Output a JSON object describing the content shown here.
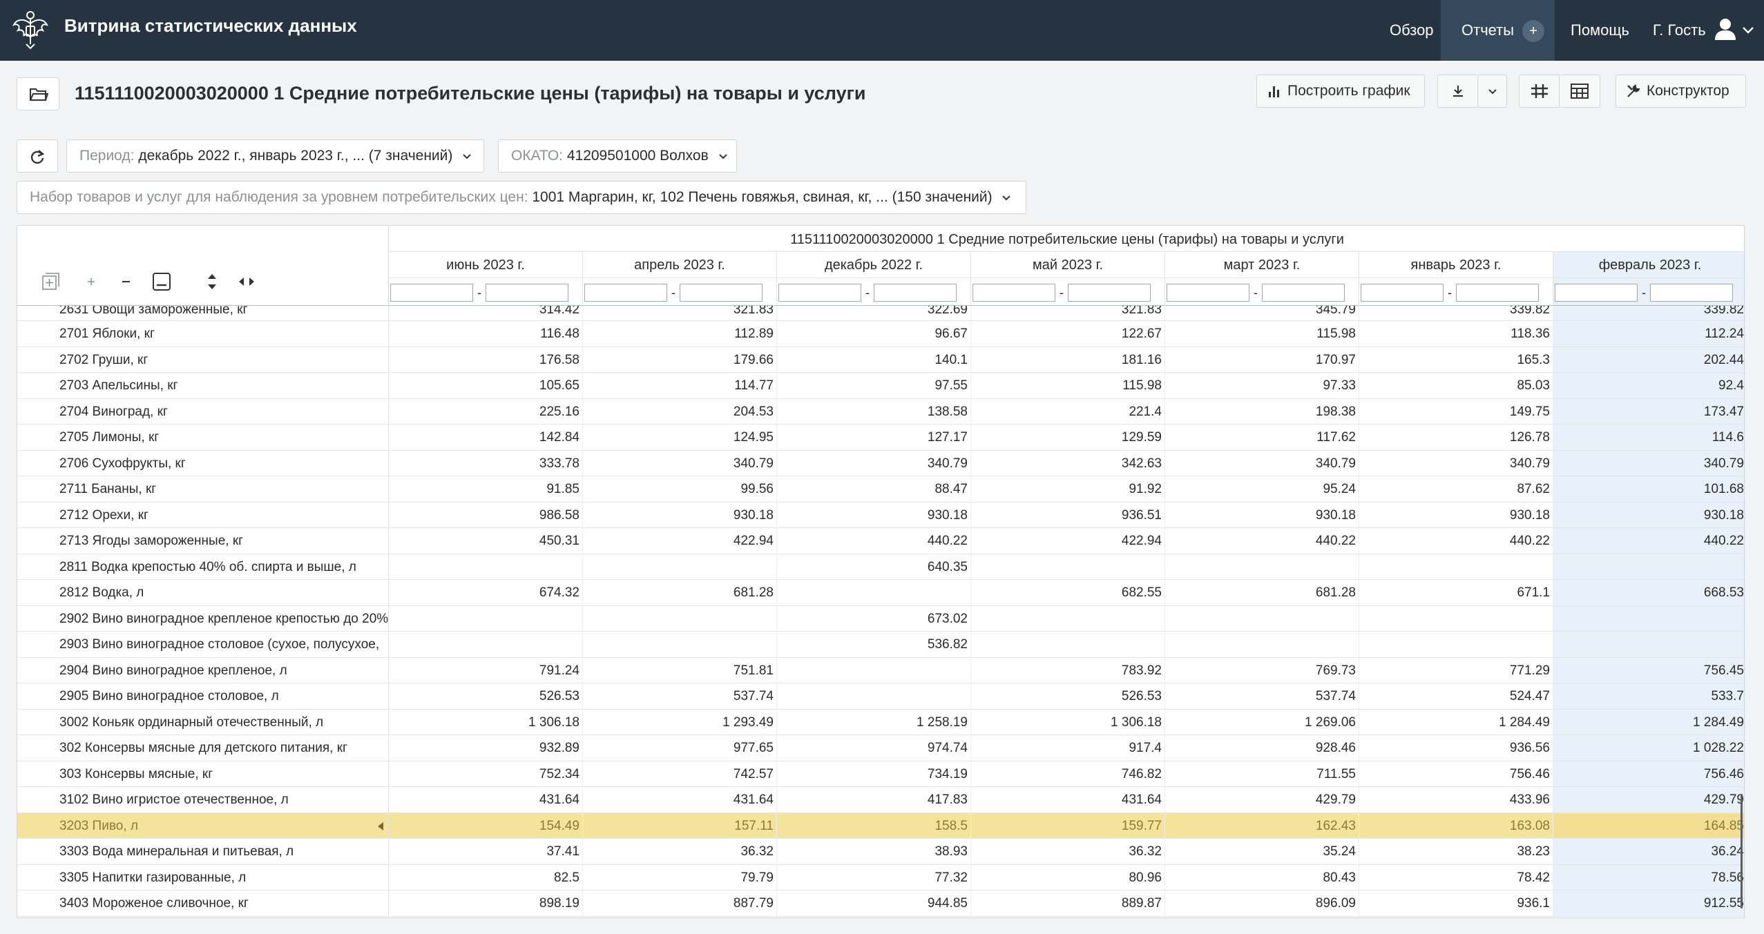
{
  "header": {
    "app_title": "Витрина статистических данных",
    "nav": {
      "overview": "Обзор",
      "reports": "Отчеты",
      "reports_badge": "+",
      "help": "Помощь",
      "user": "Г. Гость"
    }
  },
  "toolbar": {
    "page_title": "1151110020003020000 1 Средние потребительские цены (тарифы) на товары и услуги",
    "build_chart": "Построить график",
    "constructor": "Конструктор"
  },
  "filters": {
    "period_label": "Период:",
    "period_value": "декабрь 2022 г., январь 2023 г., ... (7 значений)",
    "okato_label": "ОКАТО:",
    "okato_value": "41209501000 Волхов",
    "goods_label": "Набор товаров и услуг для наблюдения за уровнем потребительских цен:",
    "goods_value": "1001 Маргарин, кг, 102 Печень говяжья, свиная, кг, ... (150 значений)"
  },
  "table": {
    "title": "1151110020003020000 1 Средние потребительские цены (тарифы) на товары и услуги",
    "filter_dash": "-",
    "columns": [
      "июнь 2023 г.",
      "апрель 2023 г.",
      "декабрь 2022 г.",
      "май 2023 г.",
      "март 2023 г.",
      "январь 2023 г.",
      "февраль 2023 г."
    ],
    "rows": [
      {
        "name": "2631 Овощи замороженные, кг",
        "v": [
          "314.42",
          "321.83",
          "322.69",
          "321.83",
          "345.79",
          "339.82",
          "339.82"
        ]
      },
      {
        "name": "2701 Яблоки, кг",
        "v": [
          "116.48",
          "112.89",
          "96.67",
          "122.67",
          "115.98",
          "118.36",
          "112.24"
        ]
      },
      {
        "name": "2702 Груши, кг",
        "v": [
          "176.58",
          "179.66",
          "140.1",
          "181.16",
          "170.97",
          "165.3",
          "202.44"
        ]
      },
      {
        "name": "2703 Апельсины, кг",
        "v": [
          "105.65",
          "114.77",
          "97.55",
          "115.98",
          "97.33",
          "85.03",
          "92.4"
        ]
      },
      {
        "name": "2704 Виноград, кг",
        "v": [
          "225.16",
          "204.53",
          "138.58",
          "221.4",
          "198.38",
          "149.75",
          "173.47"
        ]
      },
      {
        "name": "2705 Лимоны, кг",
        "v": [
          "142.84",
          "124.95",
          "127.17",
          "129.59",
          "117.62",
          "126.78",
          "114.6"
        ]
      },
      {
        "name": "2706 Сухофрукты, кг",
        "v": [
          "333.78",
          "340.79",
          "340.79",
          "342.63",
          "340.79",
          "340.79",
          "340.79"
        ]
      },
      {
        "name": "2711 Бананы, кг",
        "v": [
          "91.85",
          "99.56",
          "88.47",
          "91.92",
          "95.24",
          "87.62",
          "101.68"
        ]
      },
      {
        "name": "2712 Орехи, кг",
        "v": [
          "986.58",
          "930.18",
          "930.18",
          "936.51",
          "930.18",
          "930.18",
          "930.18"
        ]
      },
      {
        "name": "2713 Ягоды замороженные, кг",
        "v": [
          "450.31",
          "422.94",
          "440.22",
          "422.94",
          "440.22",
          "440.22",
          "440.22"
        ]
      },
      {
        "name": "2811 Водка крепостью 40% об. спирта и выше, л",
        "v": [
          "",
          "",
          "640.35",
          "",
          "",
          "",
          ""
        ]
      },
      {
        "name": "2812 Водка, л",
        "v": [
          "674.32",
          "681.28",
          "",
          "682.55",
          "681.28",
          "671.1",
          "668.53"
        ]
      },
      {
        "name": "2902 Вино виноградное крепленое крепостью до 20%",
        "v": [
          "",
          "",
          "673.02",
          "",
          "",
          "",
          ""
        ]
      },
      {
        "name": "2903 Вино виноградное столовое (сухое, полусухое,",
        "v": [
          "",
          "",
          "536.82",
          "",
          "",
          "",
          ""
        ]
      },
      {
        "name": "2904 Вино виноградное крепленое, л",
        "v": [
          "791.24",
          "751.81",
          "",
          "783.92",
          "769.73",
          "771.29",
          "756.45"
        ]
      },
      {
        "name": "2905 Вино виноградное столовое, л",
        "v": [
          "526.53",
          "537.74",
          "",
          "526.53",
          "537.74",
          "524.47",
          "533.7"
        ]
      },
      {
        "name": "3002 Коньяк ординарный отечественный, л",
        "v": [
          "1 306.18",
          "1 293.49",
          "1 258.19",
          "1 306.18",
          "1 269.06",
          "1 284.49",
          "1 284.49"
        ]
      },
      {
        "name": "302 Консервы мясные для детского питания, кг",
        "v": [
          "932.89",
          "977.65",
          "974.74",
          "917.4",
          "928.46",
          "936.56",
          "1 028.22"
        ]
      },
      {
        "name": "303 Консервы мясные, кг",
        "v": [
          "752.34",
          "742.57",
          "734.19",
          "746.82",
          "711.55",
          "756.46",
          "756.46"
        ]
      },
      {
        "name": "3102 Вино игристое отечественное, л",
        "v": [
          "431.64",
          "431.64",
          "417.83",
          "431.64",
          "429.79",
          "433.96",
          "429.79"
        ]
      },
      {
        "name": "3203 Пиво, л",
        "v": [
          "154.49",
          "157.11",
          "158.5",
          "159.77",
          "162.43",
          "163.08",
          "164.85"
        ],
        "selected": true
      },
      {
        "name": "3303 Вода минеральная и питьевая, л",
        "v": [
          "37.41",
          "36.32",
          "38.93",
          "36.32",
          "35.24",
          "38.23",
          "36.24"
        ]
      },
      {
        "name": "3305 Напитки газированные, л",
        "v": [
          "82.5",
          "79.79",
          "77.32",
          "80.96",
          "80.43",
          "78.42",
          "78.56"
        ]
      },
      {
        "name": "3403 Мороженое сливочное, кг",
        "v": [
          "898.19",
          "887.79",
          "944.85",
          "889.87",
          "896.09",
          "936.1",
          "912.55"
        ]
      }
    ]
  },
  "colors": {
    "topbar": "#263340",
    "selected_row": "#f4e39a",
    "highlight_column": "#e8f0fa"
  }
}
